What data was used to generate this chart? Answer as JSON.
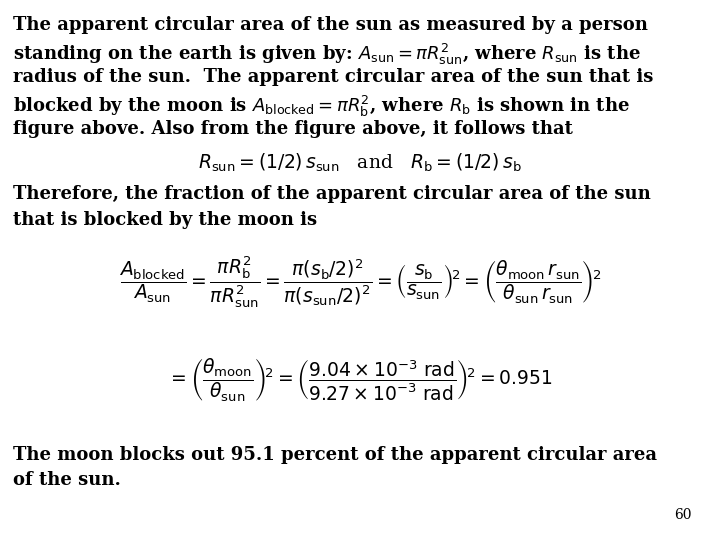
{
  "bg_color": "#ffffff",
  "text_color": "#000000",
  "figsize": [
    7.2,
    5.4
  ],
  "dpi": 100,
  "page_number": "60",
  "line1": "The apparent circular area of the sun as measured by a person",
  "line2a": "standing on the earth is given by: ",
  "line3": "radius of the sun.  The apparent circular area of the sun that is",
  "line4a": "blocked by the moon is ",
  "line4b": ", where ",
  "line4c": " is shown in the",
  "line5": "figure above. Also from the figure above, it follows that",
  "line7": "Therefore, the fraction of the apparent circular area of the sun",
  "line8": "that is blocked by the moon is",
  "lastline1": "The moon blocks out 95.1 percent of the apparent circular area",
  "lastline2": "of the sun."
}
